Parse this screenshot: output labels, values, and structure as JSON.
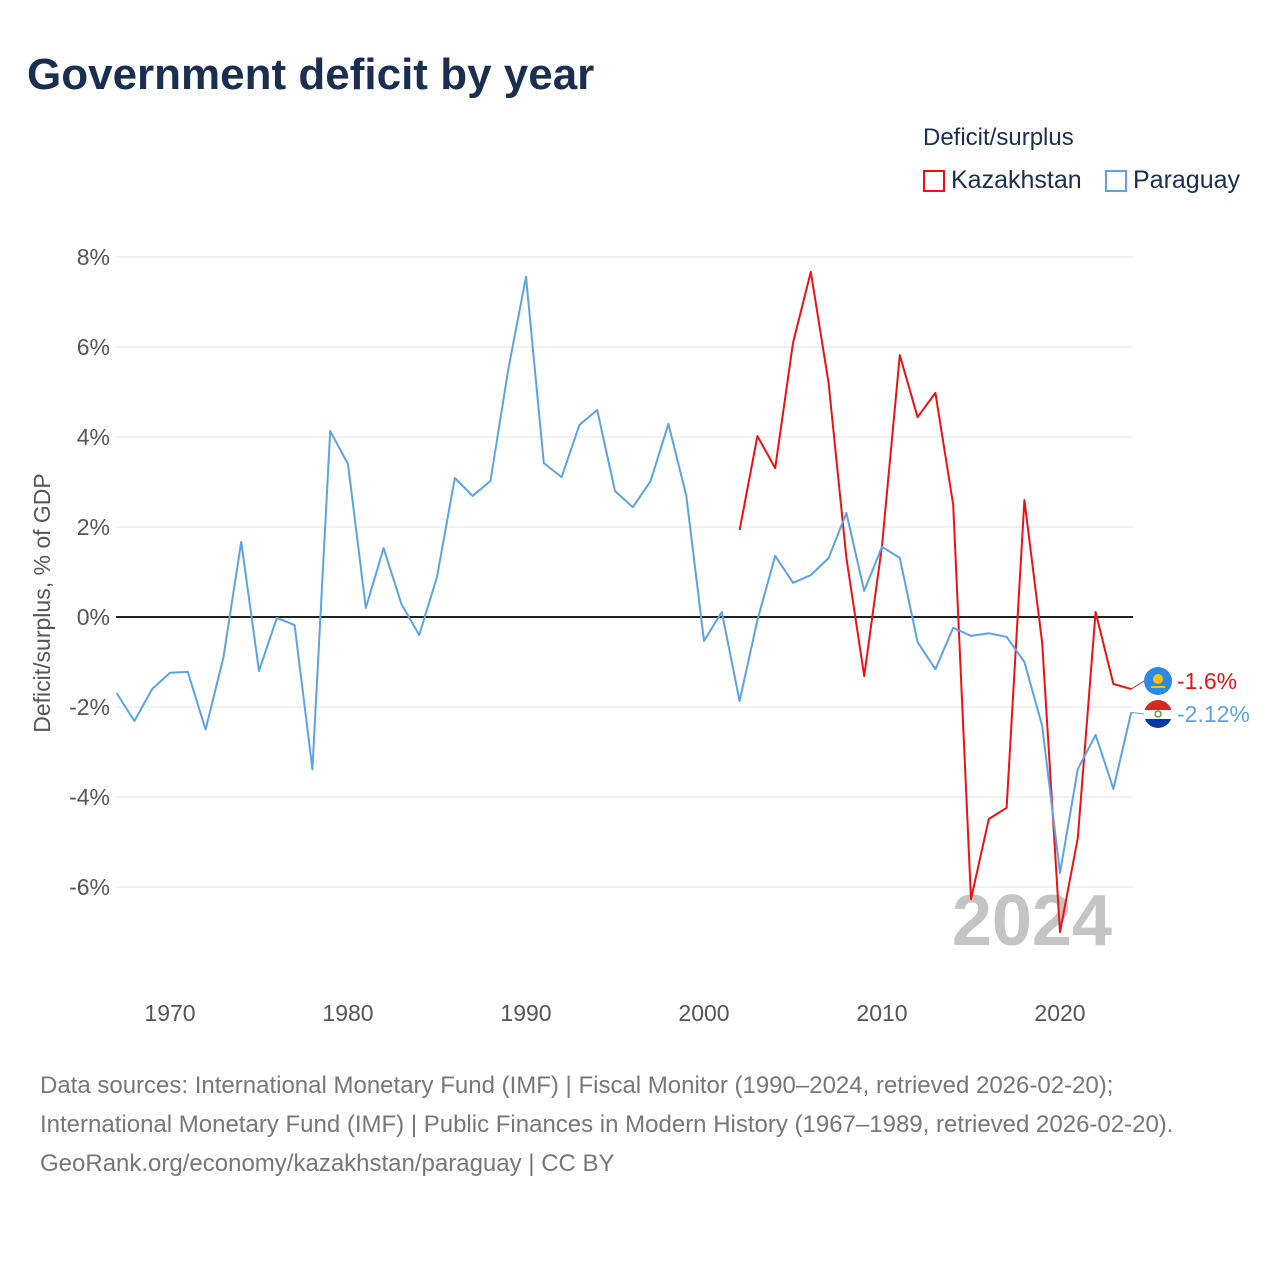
{
  "chart_data": {
    "type": "line",
    "title": "Government deficit by year",
    "ylabel": "Deficit/surplus, % of GDP",
    "xlabel": "",
    "legend_title": "Deficit/surplus",
    "legend_position": "top-right",
    "year_watermark": "2024",
    "xlim": [
      1967,
      2024
    ],
    "ylim": [
      -8,
      8
    ],
    "x_ticks": [
      1970,
      1980,
      1990,
      2000,
      2010,
      2020
    ],
    "y_ticks": [
      8,
      6,
      4,
      2,
      0,
      -2,
      -4,
      -6
    ],
    "y_tick_labels": [
      "8%",
      "6%",
      "4%",
      "2%",
      "0%",
      "-2%",
      "-4%",
      "-6%"
    ],
    "series": [
      {
        "name": "Kazakhstan",
        "color": "#ee1111",
        "end_label": "-1.6%",
        "x": [
          2002,
          2003,
          2004,
          2005,
          2006,
          2007,
          2008,
          2009,
          2010,
          2011,
          2012,
          2013,
          2014,
          2015,
          2016,
          2017,
          2018,
          2019,
          2020,
          2021,
          2022,
          2023,
          2024
        ],
        "values": [
          1.93,
          4.02,
          3.31,
          6.09,
          7.67,
          5.2,
          1.31,
          -1.31,
          1.58,
          5.82,
          4.44,
          4.98,
          2.49,
          -6.27,
          -4.49,
          -4.24,
          2.6,
          -0.58,
          -7.0,
          -4.91,
          0.11,
          -1.49,
          -1.6
        ]
      },
      {
        "name": "Paraguay",
        "color": "#5ba3e8",
        "end_label": "-2.12%",
        "x": [
          1967,
          1968,
          1969,
          1970,
          1971,
          1972,
          1973,
          1974,
          1975,
          1976,
          1977,
          1978,
          1979,
          1980,
          1981,
          1982,
          1983,
          1984,
          1985,
          1986,
          1987,
          1988,
          1989,
          1990,
          1991,
          1992,
          1993,
          1994,
          1995,
          1996,
          1997,
          1998,
          1999,
          2000,
          2001,
          2002,
          2003,
          2004,
          2005,
          2006,
          2007,
          2008,
          2009,
          2010,
          2011,
          2012,
          2013,
          2014,
          2015,
          2016,
          2017,
          2018,
          2019,
          2020,
          2021,
          2022,
          2023,
          2024
        ],
        "values": [
          -1.69,
          -2.31,
          -1.6,
          -1.24,
          -1.22,
          -2.5,
          -0.9,
          1.67,
          -1.2,
          -0.02,
          -0.18,
          -3.38,
          4.13,
          3.4,
          0.2,
          1.53,
          0.29,
          -0.4,
          0.89,
          3.09,
          2.69,
          3.02,
          5.49,
          7.56,
          3.42,
          3.11,
          4.27,
          4.6,
          2.8,
          2.44,
          3.02,
          4.29,
          2.71,
          -0.53,
          0.11,
          -1.87,
          -0.07,
          1.36,
          0.76,
          0.93,
          1.31,
          2.31,
          0.58,
          1.56,
          1.31,
          -0.56,
          -1.16,
          -0.24,
          -0.42,
          -0.36,
          -0.44,
          -1.0,
          -2.42,
          -5.69,
          -3.38,
          -2.62,
          -3.82,
          -2.12
        ]
      }
    ]
  },
  "footer": {
    "sources": "Data sources: International Monetary Fund (IMF) | Fiscal Monitor (1990–2024, retrieved 2026-02-20); International Monetary Fund (IMF) | Public Finances in Modern History (1967–1989, retrieved 2026-02-20).",
    "credit": "GeoRank.org/economy/kazakhstan/paraguay | CC BY"
  }
}
